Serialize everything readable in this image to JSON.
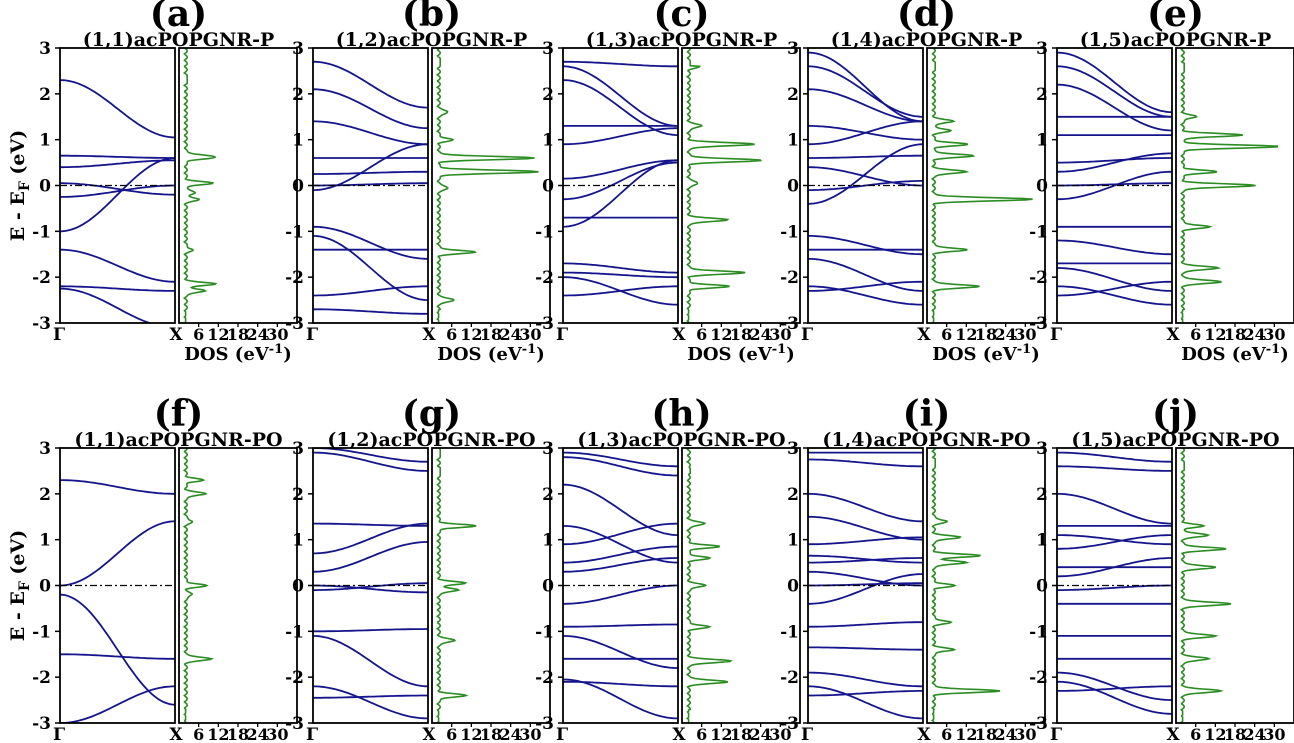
{
  "colors": {
    "band": "#14148c",
    "dos": "#2a8c22",
    "axis": "#000000"
  },
  "ylabel": {
    "main": "E - E",
    "sub": "F",
    "tail": " (eV)"
  },
  "dos_xlabel": {
    "main": "DOS (eV",
    "sup": "-1",
    "tail": ")"
  },
  "k_labels": [
    "Γ",
    "X"
  ],
  "dos_tick_labels": [
    "6",
    "12",
    "18",
    "24",
    "30"
  ],
  "chart_data": [
    {
      "id": "a",
      "letter": "(a)",
      "title": "(1,1)acPOPGNR-P",
      "type": "line",
      "ylim": [
        -3,
        3
      ],
      "yticks": [
        -3,
        -2,
        -1,
        0,
        1,
        2,
        3
      ],
      "dos_xlim": [
        0,
        36
      ],
      "bands": [
        [
          -2.2,
          -2.3
        ],
        [
          -1.4,
          -2.1
        ],
        [
          -1.0,
          0.6
        ],
        [
          -0.25,
          0.0
        ],
        [
          0.05,
          -0.2
        ],
        [
          0.4,
          0.55
        ],
        [
          0.65,
          0.6
        ],
        [
          2.3,
          1.05
        ],
        [
          -2.25,
          -3.1
        ]
      ],
      "dos": [
        [
          -2.3,
          6
        ],
        [
          -2.15,
          9
        ],
        [
          -1.4,
          2
        ],
        [
          -0.3,
          4
        ],
        [
          -0.15,
          3
        ],
        [
          0.05,
          8
        ],
        [
          0.6,
          6
        ],
        [
          0.65,
          5
        ],
        [
          2.3,
          2
        ]
      ]
    },
    {
      "id": "b",
      "letter": "(b)",
      "title": "(1,2)acPOPGNR-P",
      "type": "line",
      "ylim": [
        -3,
        3
      ],
      "yticks": [
        -3,
        -2,
        -1,
        0,
        1,
        2,
        3
      ],
      "dos_xlim": [
        0,
        36
      ],
      "bands": [
        [
          -2.7,
          -2.8
        ],
        [
          -2.4,
          -2.2
        ],
        [
          -1.4,
          -1.4
        ],
        [
          -1.1,
          -2.5
        ],
        [
          -0.9,
          -1.6
        ],
        [
          -0.1,
          0.9
        ],
        [
          0.0,
          0.05
        ],
        [
          0.25,
          0.3
        ],
        [
          0.6,
          0.6
        ],
        [
          1.4,
          0.9
        ],
        [
          2.1,
          1.25
        ],
        [
          2.7,
          1.7
        ]
      ],
      "dos": [
        [
          -2.5,
          5
        ],
        [
          -1.45,
          11
        ],
        [
          -0.05,
          3
        ],
        [
          0.3,
          30
        ],
        [
          0.6,
          29
        ],
        [
          1.0,
          4
        ],
        [
          1.6,
          3
        ],
        [
          2.7,
          2
        ]
      ]
    },
    {
      "id": "c",
      "letter": "(c)",
      "title": "(1,3)acPOPGNR-P",
      "type": "line",
      "ylim": [
        -3,
        3
      ],
      "yticks": [
        -3,
        -2,
        -1,
        0,
        1,
        2,
        3
      ],
      "dos_xlim": [
        0,
        36
      ],
      "bands": [
        [
          -2.4,
          -2.2
        ],
        [
          -2.0,
          -2.6
        ],
        [
          -1.9,
          -2.0
        ],
        [
          -1.7,
          -1.9
        ],
        [
          -0.9,
          0.55
        ],
        [
          -0.7,
          -0.7
        ],
        [
          -0.3,
          0.5
        ],
        [
          0.15,
          0.55
        ],
        [
          0.9,
          1.25
        ],
        [
          1.3,
          1.3
        ],
        [
          2.3,
          1.1
        ],
        [
          2.6,
          1.3
        ],
        [
          2.7,
          2.6
        ]
      ],
      "dos": [
        [
          -2.2,
          12
        ],
        [
          -1.9,
          17
        ],
        [
          -0.75,
          12
        ],
        [
          0.05,
          3
        ],
        [
          0.55,
          22
        ],
        [
          0.9,
          20
        ],
        [
          1.3,
          4
        ],
        [
          2.6,
          3
        ]
      ]
    },
    {
      "id": "d",
      "letter": "(d)",
      "title": "(1,4)acPOPGNR-P",
      "type": "line",
      "ylim": [
        -3,
        3
      ],
      "yticks": [
        -3,
        -2,
        -1,
        0,
        1,
        2,
        3
      ],
      "dos_xlim": [
        0,
        36
      ],
      "bands": [
        [
          -2.3,
          -2.1
        ],
        [
          -2.2,
          -2.6
        ],
        [
          -1.6,
          -2.3
        ],
        [
          -1.4,
          -1.4
        ],
        [
          -1.1,
          -1.5
        ],
        [
          -0.4,
          0.9
        ],
        [
          -0.1,
          0.1
        ],
        [
          0.4,
          0.0
        ],
        [
          0.6,
          0.65
        ],
        [
          0.9,
          1.4
        ],
        [
          1.3,
          1.0
        ],
        [
          2.1,
          1.4
        ],
        [
          2.6,
          1.5
        ],
        [
          2.9,
          1.4
        ]
      ],
      "dos": [
        [
          -2.2,
          14
        ],
        [
          -1.4,
          10
        ],
        [
          -0.3,
          30
        ],
        [
          0.3,
          10
        ],
        [
          0.65,
          12
        ],
        [
          0.9,
          10
        ],
        [
          1.2,
          5
        ],
        [
          1.4,
          6
        ],
        [
          2.6,
          3
        ]
      ]
    },
    {
      "id": "e",
      "letter": "(e)",
      "title": "(1,5)acPOPGNR-P",
      "type": "line",
      "ylim": [
        -3,
        3
      ],
      "yticks": [
        -3,
        -2,
        -1,
        0,
        1,
        2,
        3
      ],
      "dos_xlim": [
        0,
        36
      ],
      "bands": [
        [
          -2.4,
          -2.1
        ],
        [
          -2.2,
          -2.6
        ],
        [
          -1.8,
          -2.3
        ],
        [
          -1.7,
          -1.7
        ],
        [
          -1.2,
          -1.5
        ],
        [
          -0.9,
          -0.9
        ],
        [
          -0.3,
          0.3
        ],
        [
          0.0,
          0.05
        ],
        [
          0.3,
          0.7
        ],
        [
          0.5,
          0.6
        ],
        [
          1.1,
          1.1
        ],
        [
          1.5,
          1.5
        ],
        [
          2.2,
          1.2
        ],
        [
          2.6,
          1.5
        ],
        [
          2.9,
          1.6
        ]
      ],
      "dos": [
        [
          -2.1,
          12
        ],
        [
          -1.8,
          11
        ],
        [
          -0.9,
          8
        ],
        [
          0.0,
          22
        ],
        [
          0.3,
          10
        ],
        [
          0.85,
          29
        ],
        [
          1.1,
          18
        ],
        [
          1.5,
          4
        ],
        [
          2.6,
          4
        ]
      ]
    },
    {
      "id": "f",
      "letter": "(f)",
      "title": "(1,1)acPOPGNR-PO",
      "type": "line",
      "ylim": [
        -3,
        3
      ],
      "yticks": [
        -3,
        -2,
        -1,
        0,
        1,
        2,
        3
      ],
      "dos_xlim": [
        0,
        36
      ],
      "bands": [
        [
          -3.0,
          -2.2
        ],
        [
          -1.5,
          -1.6
        ],
        [
          -0.2,
          -2.6
        ],
        [
          0.0,
          1.4
        ],
        [
          2.3,
          2.0
        ]
      ],
      "dos": [
        [
          -1.6,
          8
        ],
        [
          -0.2,
          2
        ],
        [
          0.0,
          6
        ],
        [
          1.4,
          2
        ],
        [
          2.0,
          6
        ],
        [
          2.3,
          5
        ]
      ]
    },
    {
      "id": "g",
      "letter": "(g)",
      "title": "(1,2)acPOPGNR-PO",
      "type": "line",
      "ylim": [
        -3,
        3
      ],
      "yticks": [
        -3,
        -2,
        -1,
        0,
        1,
        2,
        3
      ],
      "dos_xlim": [
        0,
        36
      ],
      "bands": [
        [
          -2.45,
          -2.4
        ],
        [
          -2.2,
          -2.9
        ],
        [
          -1.1,
          -2.2
        ],
        [
          -1.0,
          -0.95
        ],
        [
          -0.1,
          0.05
        ],
        [
          0.0,
          -0.15
        ],
        [
          0.3,
          0.95
        ],
        [
          0.7,
          1.35
        ],
        [
          1.35,
          1.3
        ],
        [
          2.9,
          2.5
        ],
        [
          3.0,
          2.7
        ]
      ],
      "dos": [
        [
          -2.4,
          8
        ],
        [
          -1.2,
          5
        ],
        [
          -0.1,
          6
        ],
        [
          0.05,
          8
        ],
        [
          1.3,
          11
        ],
        [
          2.5,
          3
        ],
        [
          2.9,
          4
        ]
      ]
    },
    {
      "id": "h",
      "letter": "(h)",
      "title": "(1,3)acPOPGNR-PO",
      "type": "line",
      "ylim": [
        -3,
        3
      ],
      "yticks": [
        -3,
        -2,
        -1,
        0,
        1,
        2,
        3
      ],
      "dos_xlim": [
        0,
        36
      ],
      "bands": [
        [
          -2.1,
          -2.2
        ],
        [
          -2.05,
          -2.9
        ],
        [
          -1.6,
          -1.6
        ],
        [
          -1.1,
          -1.8
        ],
        [
          -0.9,
          -0.85
        ],
        [
          -0.4,
          0.0
        ],
        [
          0.3,
          0.6
        ],
        [
          0.5,
          0.85
        ],
        [
          0.9,
          1.35
        ],
        [
          1.3,
          0.5
        ],
        [
          2.2,
          1.1
        ],
        [
          2.8,
          2.4
        ],
        [
          2.9,
          2.6
        ]
      ],
      "dos": [
        [
          -2.1,
          12
        ],
        [
          -1.65,
          13
        ],
        [
          -0.9,
          6
        ],
        [
          0.0,
          5
        ],
        [
          0.6,
          6
        ],
        [
          0.85,
          9
        ],
        [
          1.35,
          5
        ],
        [
          2.5,
          4
        ]
      ]
    },
    {
      "id": "i",
      "letter": "(i)",
      "title": "(1,4)acPOPGNR-PO",
      "type": "line",
      "ylim": [
        -3,
        3
      ],
      "yticks": [
        -3,
        -2,
        -1,
        0,
        1,
        2,
        3
      ],
      "dos_xlim": [
        0,
        36
      ],
      "bands": [
        [
          -2.4,
          -2.3
        ],
        [
          -2.2,
          -2.9
        ],
        [
          -1.9,
          -2.2
        ],
        [
          -1.35,
          -1.4
        ],
        [
          -0.9,
          -0.8
        ],
        [
          -0.4,
          0.25
        ],
        [
          0.0,
          0.05
        ],
        [
          0.3,
          0.0
        ],
        [
          0.5,
          0.6
        ],
        [
          0.65,
          0.5
        ],
        [
          0.9,
          1.05
        ],
        [
          1.5,
          1.0
        ],
        [
          2.0,
          1.4
        ],
        [
          2.75,
          2.6
        ],
        [
          2.9,
          2.9
        ]
      ],
      "dos": [
        [
          -2.3,
          20
        ],
        [
          -1.4,
          6
        ],
        [
          -0.8,
          5
        ],
        [
          0.0,
          6
        ],
        [
          0.5,
          10
        ],
        [
          0.65,
          14
        ],
        [
          1.05,
          8
        ],
        [
          1.4,
          4
        ],
        [
          2.7,
          3
        ]
      ]
    },
    {
      "id": "j",
      "letter": "(j)",
      "title": "(1,5)acPOPGNR-PO",
      "type": "line",
      "ylim": [
        -3,
        3
      ],
      "yticks": [
        -3,
        -2,
        -1,
        0,
        1,
        2,
        3
      ],
      "dos_xlim": [
        0,
        36
      ],
      "bands": [
        [
          -2.3,
          -2.2
        ],
        [
          -2.1,
          -2.8
        ],
        [
          -1.9,
          -2.5
        ],
        [
          -1.6,
          -1.6
        ],
        [
          -1.1,
          -1.1
        ],
        [
          -0.4,
          -0.4
        ],
        [
          -0.1,
          0.0
        ],
        [
          0.2,
          0.6
        ],
        [
          0.4,
          0.4
        ],
        [
          0.8,
          1.1
        ],
        [
          1.1,
          0.9
        ],
        [
          1.3,
          1.3
        ],
        [
          2.0,
          1.35
        ],
        [
          2.6,
          2.5
        ],
        [
          2.9,
          2.7
        ]
      ],
      "dos": [
        [
          -2.3,
          12
        ],
        [
          -1.6,
          8
        ],
        [
          -1.1,
          10
        ],
        [
          -0.4,
          15
        ],
        [
          0.4,
          10
        ],
        [
          0.8,
          13
        ],
        [
          1.1,
          8
        ],
        [
          1.3,
          6
        ],
        [
          2.6,
          3
        ]
      ]
    }
  ]
}
